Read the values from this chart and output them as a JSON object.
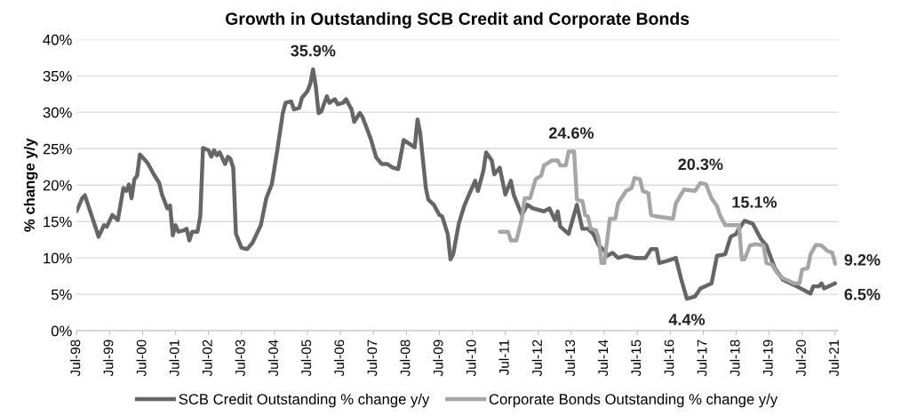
{
  "chart_data": {
    "type": "line",
    "title": "Growth in Outstanding SCB Credit and Corporate Bonds",
    "ylabel": "% change y/y",
    "xlim": [
      "1998-07",
      "2021-08"
    ],
    "xticks": [
      {
        "value": "1998-07",
        "label": "Jul-98"
      },
      {
        "value": "1999-07",
        "label": "Jul-99"
      },
      {
        "value": "2000-07",
        "label": "Jul-00"
      },
      {
        "value": "2001-07",
        "label": "Jul-01"
      },
      {
        "value": "2002-07",
        "label": "Jul-02"
      },
      {
        "value": "2003-07",
        "label": "Jul-03"
      },
      {
        "value": "2004-07",
        "label": "Jul-04"
      },
      {
        "value": "2005-07",
        "label": "Jul-05"
      },
      {
        "value": "2006-07",
        "label": "Jul-06"
      },
      {
        "value": "2007-07",
        "label": "Jul-07"
      },
      {
        "value": "2008-07",
        "label": "Jul-08"
      },
      {
        "value": "2009-07",
        "label": "Jul-09"
      },
      {
        "value": "2010-07",
        "label": "Jul-10"
      },
      {
        "value": "2011-07",
        "label": "Jul-11"
      },
      {
        "value": "2012-07",
        "label": "Jul-12"
      },
      {
        "value": "2013-07",
        "label": "Jul-13"
      },
      {
        "value": "2014-07",
        "label": "Jul-14"
      },
      {
        "value": "2015-07",
        "label": "Jul-15"
      },
      {
        "value": "2016-07",
        "label": "Jul-16"
      },
      {
        "value": "2017-07",
        "label": "Jul-17"
      },
      {
        "value": "2018-07",
        "label": "Jul-18"
      },
      {
        "value": "2019-07",
        "label": "Jul-19"
      },
      {
        "value": "2020-07",
        "label": "Jul-20"
      },
      {
        "value": "2021-07",
        "label": "Jul-21"
      }
    ],
    "ylim": [
      0,
      40
    ],
    "yticks": [
      {
        "value": 0,
        "label": "0%"
      },
      {
        "value": 5,
        "label": "5%"
      },
      {
        "value": 10,
        "label": "10%"
      },
      {
        "value": 15,
        "label": "15%"
      },
      {
        "value": 20,
        "label": "20%"
      },
      {
        "value": 25,
        "label": "25%"
      },
      {
        "value": 30,
        "label": "30%"
      },
      {
        "value": 35,
        "label": "35%"
      },
      {
        "value": 40,
        "label": "40%"
      }
    ],
    "grid": "y",
    "legend": "bottom",
    "marker": "none",
    "line_style": "solid",
    "series": [
      {
        "name": "SCB Credit Outstanding % change y/y",
        "color": "#666666",
        "x": [
          "1998-07",
          "1998-09",
          "1998-10",
          "1999-02",
          "1999-03",
          "1999-05",
          "1999-06",
          "1999-08",
          "1999-10",
          "1999-12",
          "2000-01",
          "2000-02",
          "2000-03",
          "2000-04",
          "2000-05",
          "2000-06",
          "2000-08",
          "2000-09",
          "2000-11",
          "2001-01",
          "2001-02",
          "2001-04",
          "2001-05",
          "2001-06",
          "2001-07",
          "2001-08",
          "2001-10",
          "2001-11",
          "2001-12",
          "2002-01",
          "2002-03",
          "2002-04",
          "2002-05",
          "2002-07",
          "2002-08",
          "2002-09",
          "2002-10",
          "2002-11",
          "2003-01",
          "2003-02",
          "2003-03",
          "2003-04",
          "2003-05",
          "2003-07",
          "2003-09",
          "2003-11",
          "2004-02",
          "2004-04",
          "2004-06",
          "2004-08",
          "2004-10",
          "2004-11",
          "2005-01",
          "2005-02",
          "2005-04",
          "2005-05",
          "2005-07",
          "2005-08",
          "2005-09",
          "2005-10",
          "2005-11",
          "2005-12",
          "2006-02",
          "2006-03",
          "2006-05",
          "2006-06",
          "2006-08",
          "2006-09",
          "2006-11",
          "2006-12",
          "2007-02",
          "2007-03",
          "2007-06",
          "2007-08",
          "2007-10",
          "2007-12",
          "2008-02",
          "2008-04",
          "2008-06",
          "2008-08",
          "2008-10",
          "2008-11",
          "2008-12",
          "2009-02",
          "2009-03",
          "2009-05",
          "2009-07",
          "2009-08",
          "2009-10",
          "2009-11",
          "2009-12",
          "2010-02",
          "2010-04",
          "2010-06",
          "2010-08",
          "2010-09",
          "2010-11",
          "2010-12",
          "2011-02",
          "2011-03",
          "2011-05",
          "2011-07",
          "2011-09",
          "2011-10",
          "2012-01",
          "2012-03",
          "2012-05",
          "2012-09",
          "2012-11",
          "2013-01",
          "2013-02",
          "2013-03",
          "2013-06",
          "2013-09",
          "2013-11",
          "2014-01",
          "2014-03",
          "2014-05",
          "2014-07",
          "2014-08",
          "2014-10",
          "2014-12",
          "2015-03",
          "2015-06",
          "2015-10",
          "2015-12",
          "2016-02",
          "2016-03",
          "2016-06",
          "2016-09",
          "2016-11",
          "2017-01",
          "2017-04",
          "2017-06",
          "2017-10",
          "2017-12",
          "2018-03",
          "2018-05",
          "2018-07",
          "2018-08",
          "2018-10",
          "2019-01",
          "2019-04",
          "2019-06",
          "2019-09",
          "2019-12",
          "2020-05",
          "2020-10",
          "2020-11",
          "2021-01",
          "2021-02",
          "2021-03",
          "2021-07"
        ],
        "values": [
          16.4,
          18.2,
          18.6,
          14.0,
          12.9,
          14.5,
          14.3,
          15.9,
          15.2,
          19.6,
          19.2,
          20.1,
          18.2,
          20.8,
          21.3,
          24.2,
          23.4,
          22.9,
          21.5,
          20.3,
          18.7,
          16.8,
          17.2,
          13.1,
          14.5,
          13.6,
          13.8,
          14.0,
          12.4,
          13.6,
          13.6,
          15.7,
          25.1,
          24.8,
          23.9,
          24.8,
          24.1,
          24.5,
          22.9,
          23.9,
          23.6,
          22.4,
          13.3,
          11.4,
          11.2,
          12.1,
          14.5,
          18.2,
          20.1,
          24.8,
          29.9,
          31.3,
          31.5,
          30.4,
          30.6,
          32.0,
          32.9,
          33.9,
          35.9,
          33.6,
          29.9,
          30.1,
          32.2,
          31.3,
          31.8,
          31.1,
          31.3,
          31.8,
          30.4,
          28.7,
          29.9,
          29.4,
          26.4,
          23.8,
          22.9,
          22.9,
          22.4,
          22.2,
          26.2,
          25.7,
          25.2,
          29.0,
          27.1,
          19.6,
          18.0,
          17.3,
          15.9,
          15.7,
          13.3,
          9.8,
          10.5,
          14.7,
          17.1,
          18.9,
          20.6,
          19.2,
          22.0,
          24.5,
          23.4,
          21.5,
          22.4,
          18.7,
          20.6,
          18.7,
          15.9,
          17.3,
          16.8,
          16.4,
          16.8,
          15.2,
          16.4,
          14.3,
          13.3,
          17.3,
          14.0,
          14.0,
          13.3,
          11.7,
          11.0,
          10.3,
          10.7,
          10.0,
          10.3,
          10.0,
          10.0,
          11.2,
          11.2,
          9.3,
          9.6,
          10.0,
          7.0,
          4.4,
          4.7,
          5.8,
          6.5,
          10.3,
          10.5,
          12.9,
          13.3,
          14.0,
          15.1,
          14.7,
          12.6,
          11.7,
          8.6,
          7.0,
          6.1,
          5.1,
          6.1,
          6.1,
          6.5,
          5.8,
          6.5
        ]
      },
      {
        "name": "Corporate Bonds Outstanding % change y/y",
        "color": "#a6a6a6",
        "x": [
          "2011-05",
          "2011-08",
          "2011-09",
          "2011-11",
          "2012-01",
          "2012-02",
          "2012-04",
          "2012-06",
          "2012-08",
          "2012-09",
          "2012-12",
          "2013-02",
          "2013-03",
          "2013-05",
          "2013-06",
          "2013-08",
          "2013-09",
          "2013-11",
          "2013-12",
          "2014-01",
          "2014-02",
          "2014-04",
          "2014-05",
          "2014-06",
          "2014-07",
          "2014-09",
          "2014-11",
          "2014-12",
          "2015-03",
          "2015-05",
          "2015-06",
          "2015-08",
          "2015-09",
          "2015-11",
          "2015-12",
          "2016-02",
          "2016-08",
          "2016-09",
          "2016-12",
          "2017-04",
          "2017-06",
          "2017-08",
          "2017-10",
          "2017-12",
          "2018-01",
          "2018-03",
          "2018-08",
          "2018-09",
          "2018-10",
          "2018-12",
          "2019-02",
          "2019-05",
          "2019-06",
          "2019-08",
          "2019-10",
          "2019-12",
          "2020-04",
          "2020-06",
          "2020-07",
          "2020-09",
          "2020-10",
          "2020-12",
          "2021-02",
          "2021-04",
          "2021-06",
          "2021-07"
        ],
        "values": [
          13.6,
          13.6,
          12.4,
          12.4,
          15.4,
          18.2,
          18.2,
          20.8,
          21.3,
          22.7,
          23.4,
          23.4,
          22.7,
          22.7,
          24.6,
          24.6,
          18.0,
          17.8,
          15.9,
          15.7,
          14.0,
          13.8,
          12.6,
          9.3,
          9.3,
          15.4,
          15.4,
          17.5,
          19.2,
          19.6,
          21.0,
          20.8,
          19.2,
          18.9,
          15.9,
          15.7,
          15.4,
          17.5,
          19.4,
          19.2,
          20.3,
          20.1,
          18.2,
          17.1,
          15.9,
          14.5,
          14.5,
          9.8,
          9.8,
          11.7,
          11.9,
          11.7,
          9.3,
          9.1,
          7.9,
          7.2,
          6.5,
          6.5,
          8.4,
          8.6,
          10.5,
          11.8,
          11.7,
          11.0,
          10.7,
          9.2
        ]
      }
    ],
    "annotations": [
      {
        "text": "35.9%",
        "x": "2005-09",
        "y": 35.9
      },
      {
        "text": "24.6%",
        "x": "2013-07",
        "y": 24.6
      },
      {
        "text": "20.3%",
        "x": "2017-06",
        "y": 20.3
      },
      {
        "text": "15.1%",
        "x": "2018-10",
        "y": 15.1
      },
      {
        "text": "4.4%",
        "x": "2017-01",
        "y": 4.4
      },
      {
        "text": "9.2%",
        "x": "2021-07",
        "y": 9.2
      },
      {
        "text": "6.5%",
        "x": "2021-07",
        "y": 6.5
      }
    ]
  }
}
